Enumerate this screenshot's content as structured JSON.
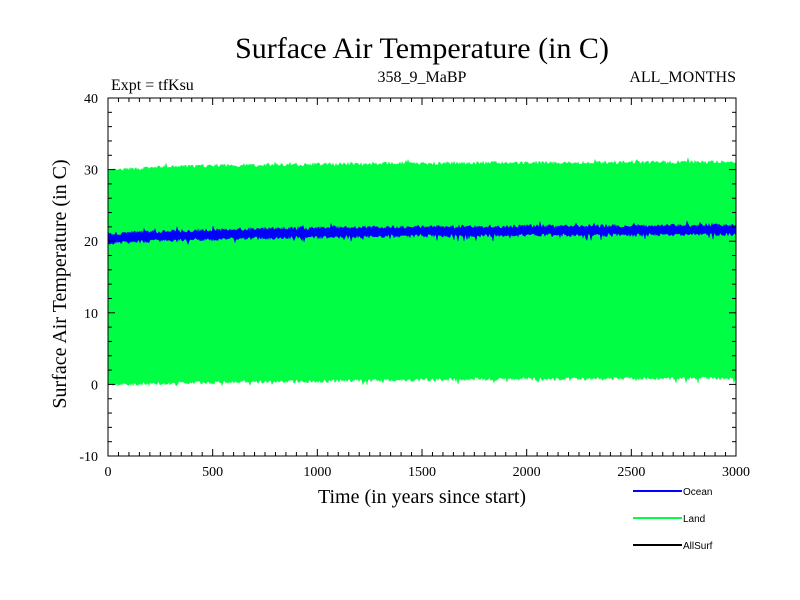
{
  "chart_data": {
    "type": "area",
    "title": "Surface Air Temperature (in C)",
    "subtitle_left": "Expt = tfKsu",
    "subtitle_center": "358_9_MaBP",
    "subtitle_right": "ALL_MONTHS",
    "xlabel": "Time (in years since start)",
    "ylabel": "Surface Air Temperature (in C)",
    "xlim": [
      0,
      3000
    ],
    "ylim": [
      -10,
      40
    ],
    "x_ticks": [
      0,
      500,
      1000,
      1500,
      2000,
      2500,
      3000
    ],
    "y_ticks": [
      -10,
      0,
      10,
      20,
      30,
      40
    ],
    "series": [
      {
        "name": "Land",
        "color": "#00ff44",
        "style": "seasonal-band",
        "x": [
          0,
          250,
          500,
          750,
          1000,
          1250,
          1500,
          1750,
          2000,
          2250,
          2500,
          2750,
          3000
        ],
        "upper": [
          29.8,
          30.3,
          30.5,
          30.6,
          30.7,
          30.8,
          30.8,
          30.9,
          30.9,
          30.9,
          31.0,
          31.0,
          31.0
        ],
        "lower": [
          0.0,
          0.2,
          0.3,
          0.4,
          0.5,
          0.6,
          0.7,
          0.8,
          0.8,
          0.8,
          0.9,
          0.9,
          0.9
        ]
      },
      {
        "name": "Ocean",
        "color": "#0000ff",
        "style": "seasonal-band",
        "x": [
          0,
          250,
          500,
          750,
          1000,
          1250,
          1500,
          1750,
          2000,
          2250,
          2500,
          2750,
          3000
        ],
        "upper": [
          21.0,
          21.3,
          21.5,
          21.7,
          21.8,
          21.9,
          22.0,
          22.0,
          22.1,
          22.1,
          22.1,
          22.2,
          22.2
        ],
        "lower": [
          19.8,
          20.1,
          20.3,
          20.5,
          20.6,
          20.7,
          20.8,
          20.8,
          20.9,
          20.9,
          20.9,
          21.0,
          21.0
        ]
      },
      {
        "name": "AllSurf",
        "color": "#000000",
        "style": "line",
        "x": [],
        "values": []
      }
    ]
  }
}
